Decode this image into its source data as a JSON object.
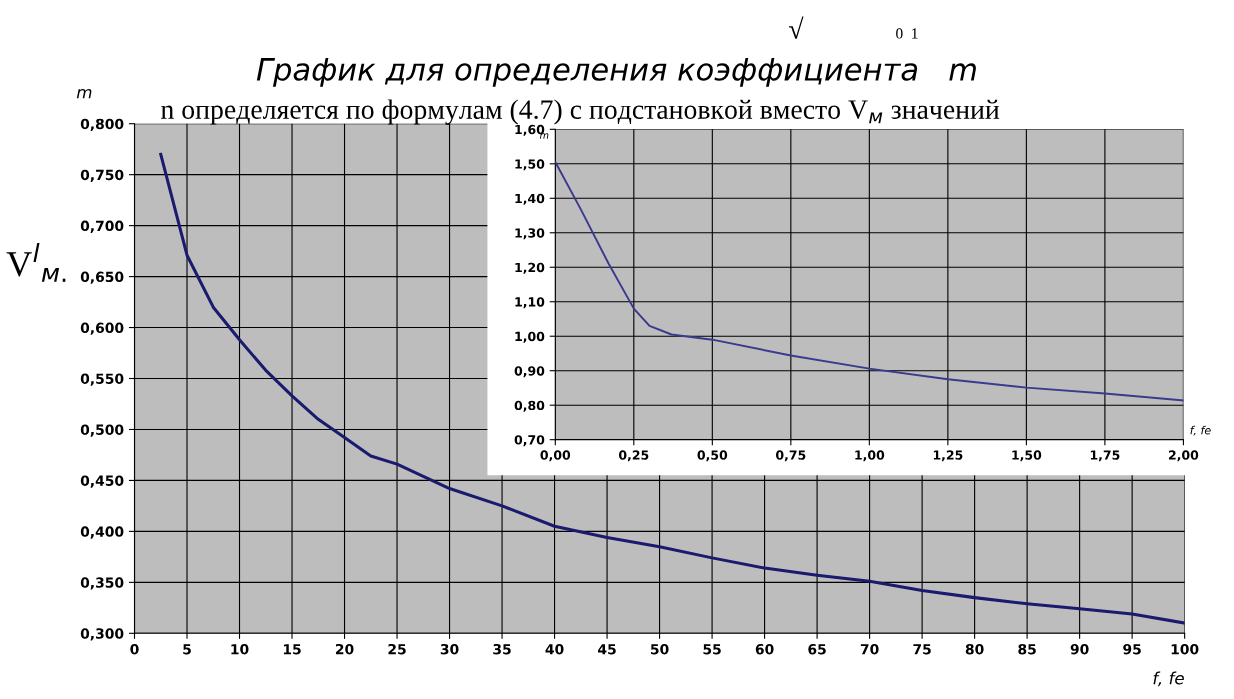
{
  "chart_data": [
    {
      "type": "line",
      "title": "График для определения коэффициента   m",
      "ylabel": "m",
      "xlabel": "f, fe",
      "x": [
        2.5,
        5,
        7.5,
        10,
        12.5,
        15,
        17.5,
        20,
        22.5,
        25,
        30,
        35,
        40,
        45,
        50,
        55,
        60,
        65,
        70,
        75,
        80,
        85,
        90,
        95,
        100
      ],
      "series": [
        {
          "color": "#1a1a6e",
          "values": [
            0.77,
            0.671,
            0.62,
            0.588,
            0.558,
            0.533,
            0.51,
            0.492,
            0.474,
            0.466,
            0.442,
            0.425,
            0.405,
            0.394,
            0.385,
            0.374,
            0.364,
            0.357,
            0.351,
            0.342,
            0.335,
            0.329,
            0.324,
            0.319,
            0.31
          ]
        }
      ],
      "xlim": [
        0,
        100
      ],
      "xticks": [
        0,
        5,
        10,
        15,
        20,
        25,
        30,
        35,
        40,
        45,
        50,
        55,
        60,
        65,
        70,
        75,
        80,
        85,
        90,
        95,
        100
      ],
      "ylim": [
        0.3,
        0.8
      ],
      "yticks": [
        {
          "value": 0.3,
          "label": "0,300"
        },
        {
          "value": 0.35,
          "label": "0,350"
        },
        {
          "value": 0.4,
          "label": "0,400"
        },
        {
          "value": 0.45,
          "label": "0,450"
        },
        {
          "value": 0.5,
          "label": "0,500"
        },
        {
          "value": 0.55,
          "label": "0,550"
        },
        {
          "value": 0.6,
          "label": "0,600"
        },
        {
          "value": 0.65,
          "label": "0,650"
        },
        {
          "value": 0.7,
          "label": "0,700"
        },
        {
          "value": 0.75,
          "label": "0,750"
        },
        {
          "value": 0.8,
          "label": "0,800"
        }
      ],
      "grid": true,
      "marker": "none",
      "line_style": "solid",
      "annotations": [
        "n определяется по формулам (4.7) с подстановкой вместо V$_{м}$ значений",
        "V$^{l}$$_{м.}$",
        "√",
        "0  1"
      ]
    },
    {
      "type": "line",
      "ylabel": "m",
      "xlabel": "f, fe",
      "x": [
        0,
        0.08,
        0.17,
        0.25,
        0.3,
        0.37,
        0.5,
        0.75,
        1.0,
        1.25,
        1.5,
        1.75,
        2.0
      ],
      "series": [
        {
          "color": "#3a3a8e",
          "values": [
            1.505,
            1.37,
            1.21,
            1.08,
            1.03,
            1.005,
            0.99,
            0.944,
            0.906,
            0.875,
            0.851,
            0.834,
            0.814
          ]
        }
      ],
      "xlim": [
        0,
        2
      ],
      "xticks": [
        {
          "value": 0,
          "label": "0,00"
        },
        {
          "value": 0.25,
          "label": "0,25"
        },
        {
          "value": 0.5,
          "label": "0,50"
        },
        {
          "value": 0.75,
          "label": "0,75"
        },
        {
          "value": 1.0,
          "label": "1,00"
        },
        {
          "value": 1.25,
          "label": "1,25"
        },
        {
          "value": 1.5,
          "label": "1,50"
        },
        {
          "value": 1.75,
          "label": "1,75"
        },
        {
          "value": 2.0,
          "label": "2,00"
        }
      ],
      "ylim": [
        0.7,
        1.6
      ],
      "yticks": [
        {
          "value": 0.7,
          "label": "0,70"
        },
        {
          "value": 0.8,
          "label": "0,80"
        },
        {
          "value": 0.9,
          "label": "0,90"
        },
        {
          "value": 1.0,
          "label": "1,00"
        },
        {
          "value": 1.1,
          "label": "1,10"
        },
        {
          "value": 1.2,
          "label": "1,20"
        },
        {
          "value": 1.3,
          "label": "1,30"
        },
        {
          "value": 1.4,
          "label": "1,40"
        },
        {
          "value": 1.5,
          "label": "1,50"
        },
        {
          "value": 1.6,
          "label": "1,60"
        }
      ],
      "grid": true,
      "marker": "none",
      "line_style": "solid"
    }
  ]
}
